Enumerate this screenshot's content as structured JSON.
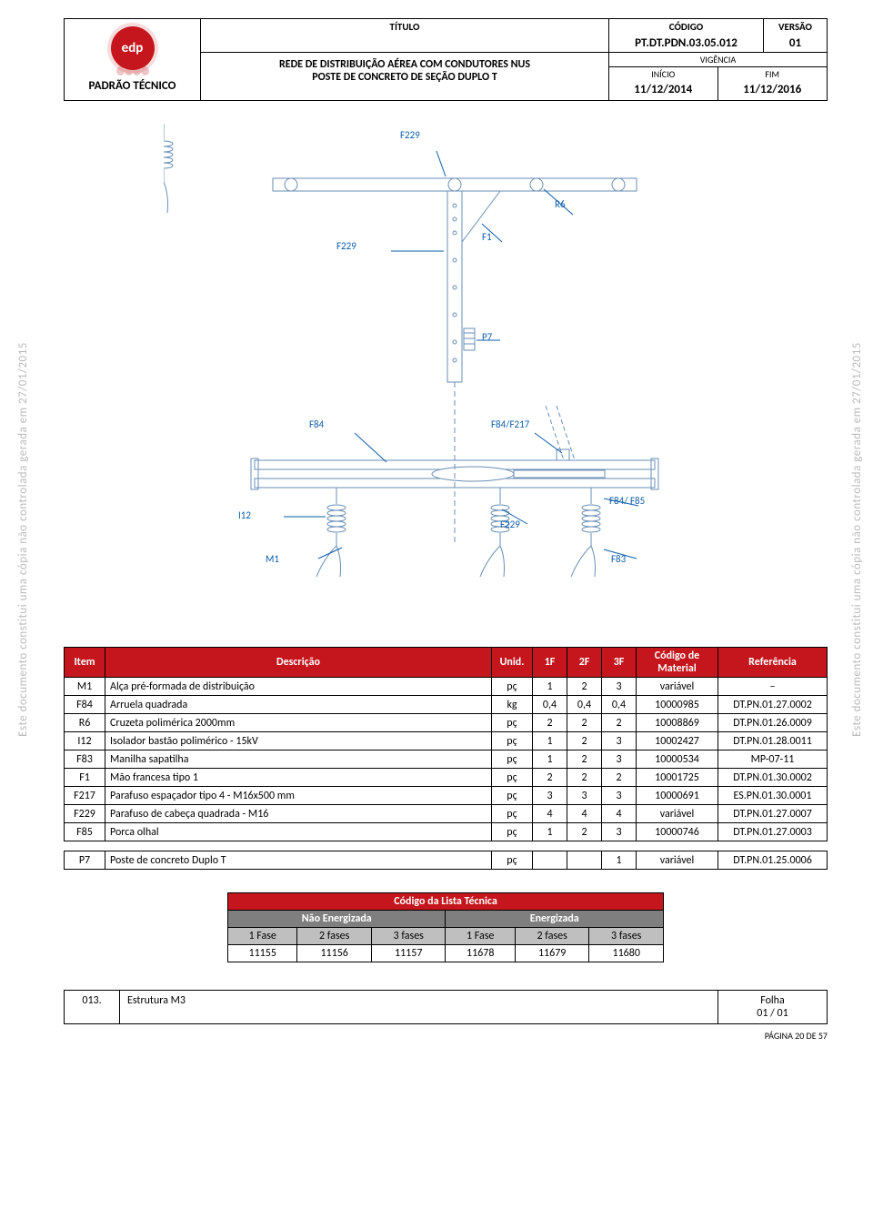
{
  "header": {
    "logo_text": "edp",
    "left_title": "PADRÃO TÉCNICO",
    "titulo_label": "TÍTULO",
    "codigo_label": "CÓDIGO",
    "codigo_value": "PT.DT.PDN.03.05.012",
    "versao_label": "VERSÃO",
    "versao_value": "01",
    "subtitle_line1": "REDE DE DISTRIBUIÇÃO AÉREA COM CONDUTORES NUS",
    "subtitle_line2": "POSTE DE CONCRETO DE SEÇÃO DUPLO T",
    "vigencia_label": "VIGÊNCIA",
    "inicio_label": "INÍCIO",
    "fim_label": "FIM",
    "inicio_value": "11/12/2014",
    "fim_value": "11/12/2016"
  },
  "diagram": {
    "callouts": {
      "f229_top": "F229",
      "r6": "R6",
      "f229_mid": "F229",
      "f1": "F1",
      "p7": "P7",
      "f84": "F84",
      "f84_f217": "F84/F217",
      "f84_f85": "F84/ F85",
      "i12": "I12",
      "f229_bot": "F229",
      "m1": "M1",
      "f83": "F83"
    },
    "colors": {
      "line": "#0b5cab",
      "draw": "#6a8fb5"
    }
  },
  "table": {
    "headers": {
      "item": "Item",
      "desc": "Descrição",
      "unid": "Unid.",
      "f1": "1F",
      "f2": "2F",
      "f3": "3F",
      "codmat": "Código de Material",
      "ref": "Referência"
    },
    "rows": [
      {
        "item": "M1",
        "desc": "Alça pré-formada de distribuição",
        "unid": "pç",
        "f1": "1",
        "f2": "2",
        "f3": "3",
        "cod": "variável",
        "ref": "–"
      },
      {
        "item": "F84",
        "desc": "Arruela quadrada",
        "unid": "kg",
        "f1": "0,4",
        "f2": "0,4",
        "f3": "0,4",
        "cod": "10000985",
        "ref": "DT.PN.01.27.0002"
      },
      {
        "item": "R6",
        "desc": "Cruzeta polimérica 2000mm",
        "unid": "pç",
        "f1": "2",
        "f2": "2",
        "f3": "2",
        "cod": "10008869",
        "ref": "DT.PN.01.26.0009"
      },
      {
        "item": "I12",
        "desc": "Isolador bastão polimérico - 15kV",
        "unid": "pç",
        "f1": "1",
        "f2": "2",
        "f3": "3",
        "cod": "10002427",
        "ref": "DT.PN.01.28.0011"
      },
      {
        "item": "F83",
        "desc": "Manilha sapatilha",
        "unid": "pç",
        "f1": "1",
        "f2": "2",
        "f3": "3",
        "cod": "10000534",
        "ref": "MP-07-11"
      },
      {
        "item": "F1",
        "desc": "Mão francesa tipo 1",
        "unid": "pç",
        "f1": "2",
        "f2": "2",
        "f3": "2",
        "cod": "10001725",
        "ref": "DT.PN.01.30.0002"
      },
      {
        "item": "F217",
        "desc": "Parafuso espaçador tipo 4 - M16x500 mm",
        "unid": "pç",
        "f1": "3",
        "f2": "3",
        "f3": "3",
        "cod": "10000691",
        "ref": "ES.PN.01.30.0001"
      },
      {
        "item": "F229",
        "desc": "Parafuso de cabeça quadrada - M16",
        "unid": "pç",
        "f1": "4",
        "f2": "4",
        "f3": "4",
        "cod": "variável",
        "ref": "DT.PN.01.27.0007"
      },
      {
        "item": "F85",
        "desc": "Porca olhal",
        "unid": "pç",
        "f1": "1",
        "f2": "2",
        "f3": "3",
        "cod": "10000746",
        "ref": "DT.PN.01.27.0003"
      }
    ],
    "second": [
      {
        "item": "P7",
        "desc": "Poste de concreto Duplo T",
        "unid": "pç",
        "f1": "",
        "f2": "",
        "f3": "1",
        "cod": "variável",
        "ref": "DT.PN.01.25.0006"
      }
    ]
  },
  "lista": {
    "title": "Código da Lista Técnica",
    "sub1": "Não Energizada",
    "sub2": "Energizada",
    "phase_labels": [
      "1 Fase",
      "2 fases",
      "3 fases",
      "1 Fase",
      "2 fases",
      "3 fases"
    ],
    "values": [
      "11155",
      "11156",
      "11157",
      "11678",
      "11679",
      "11680"
    ]
  },
  "footer": {
    "num": "013.",
    "title": "Estrutura M3",
    "folha_label": "Folha",
    "folha_value": "01 / 01",
    "pagenum": "PÁGINA 20 DE 57"
  },
  "watermark": "Este documento constitui uma cópia não controlada gerada em 27/01/2015"
}
